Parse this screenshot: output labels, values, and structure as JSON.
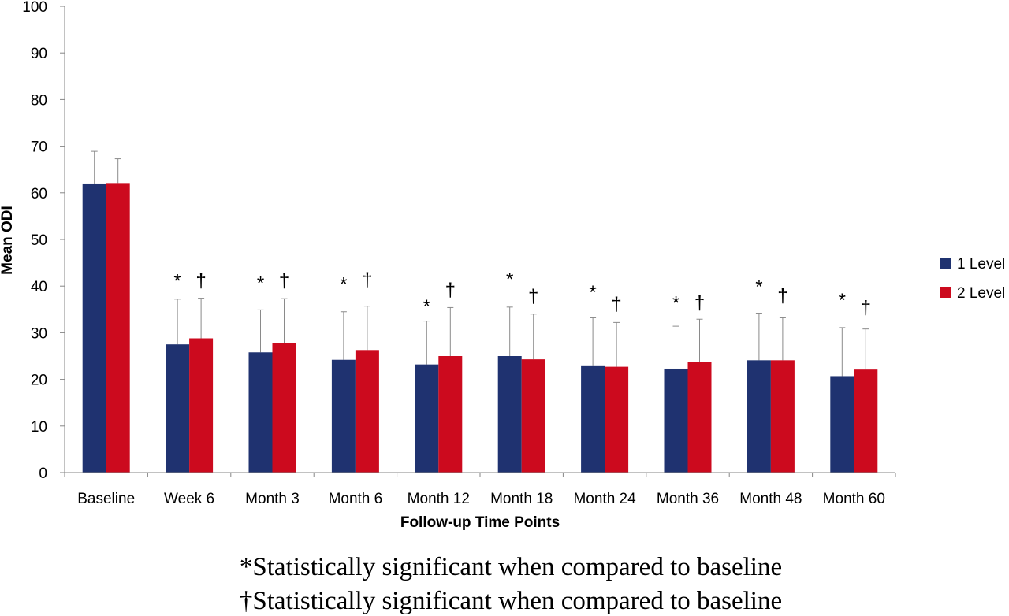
{
  "chart_data": {
    "type": "bar",
    "title": "",
    "xlabel": "Follow-up Time Points",
    "ylabel": "Mean ODI",
    "ylim": [
      0,
      100
    ],
    "yticks": [
      0,
      10,
      20,
      30,
      40,
      50,
      60,
      70,
      80,
      90,
      100
    ],
    "grid": false,
    "legend_position": "right",
    "categories": [
      "Baseline",
      "Week 6",
      "Month 3",
      "Month 6",
      "Month 12",
      "Month 18",
      "Month 24",
      "Month 36",
      "Month 48",
      "Month 60"
    ],
    "series": [
      {
        "name": "1 Level",
        "color": "#1f3270",
        "values": [
          62,
          27.5,
          25.8,
          24.2,
          23.2,
          25,
          23,
          22.3,
          24.1,
          20.7
        ],
        "error_upper": [
          68.9,
          37.2,
          34.9,
          34.5,
          32.5,
          35.5,
          33.2,
          31.4,
          34.2,
          31.1
        ]
      },
      {
        "name": "2 Level",
        "color": "#cc0a1e",
        "values": [
          62.1,
          28.8,
          27.8,
          26.3,
          25,
          24.3,
          22.7,
          23.7,
          24.1,
          22.1
        ],
        "error_upper": [
          67.3,
          37.4,
          37.3,
          35.7,
          35.4,
          34,
          32.2,
          32.9,
          33.2,
          30.8
        ]
      }
    ],
    "annotations": [
      {
        "series": "1 Level",
        "symbol": "*",
        "categories": [
          "Week 6",
          "Month 3",
          "Month 6",
          "Month 12",
          "Month 18",
          "Month 24",
          "Month 36",
          "Month 48",
          "Month 60"
        ],
        "label_values": [
          41.5,
          41,
          40.8,
          36,
          41.8,
          39,
          36.7,
          40.2,
          37.3
        ]
      },
      {
        "series": "2 Level",
        "symbol": "†",
        "categories": [
          "Week 6",
          "Month 3",
          "Month 6",
          "Month 12",
          "Month 18",
          "Month 24",
          "Month 36",
          "Month 48",
          "Month 60"
        ],
        "label_values": [
          41.5,
          41.5,
          41.7,
          39.5,
          38.2,
          36.5,
          36.7,
          38.3,
          35.7
        ]
      }
    ],
    "footnotes": [
      "*Statistically significant when compared to baseline",
      "†Statistically significant when compared to baseline"
    ]
  }
}
